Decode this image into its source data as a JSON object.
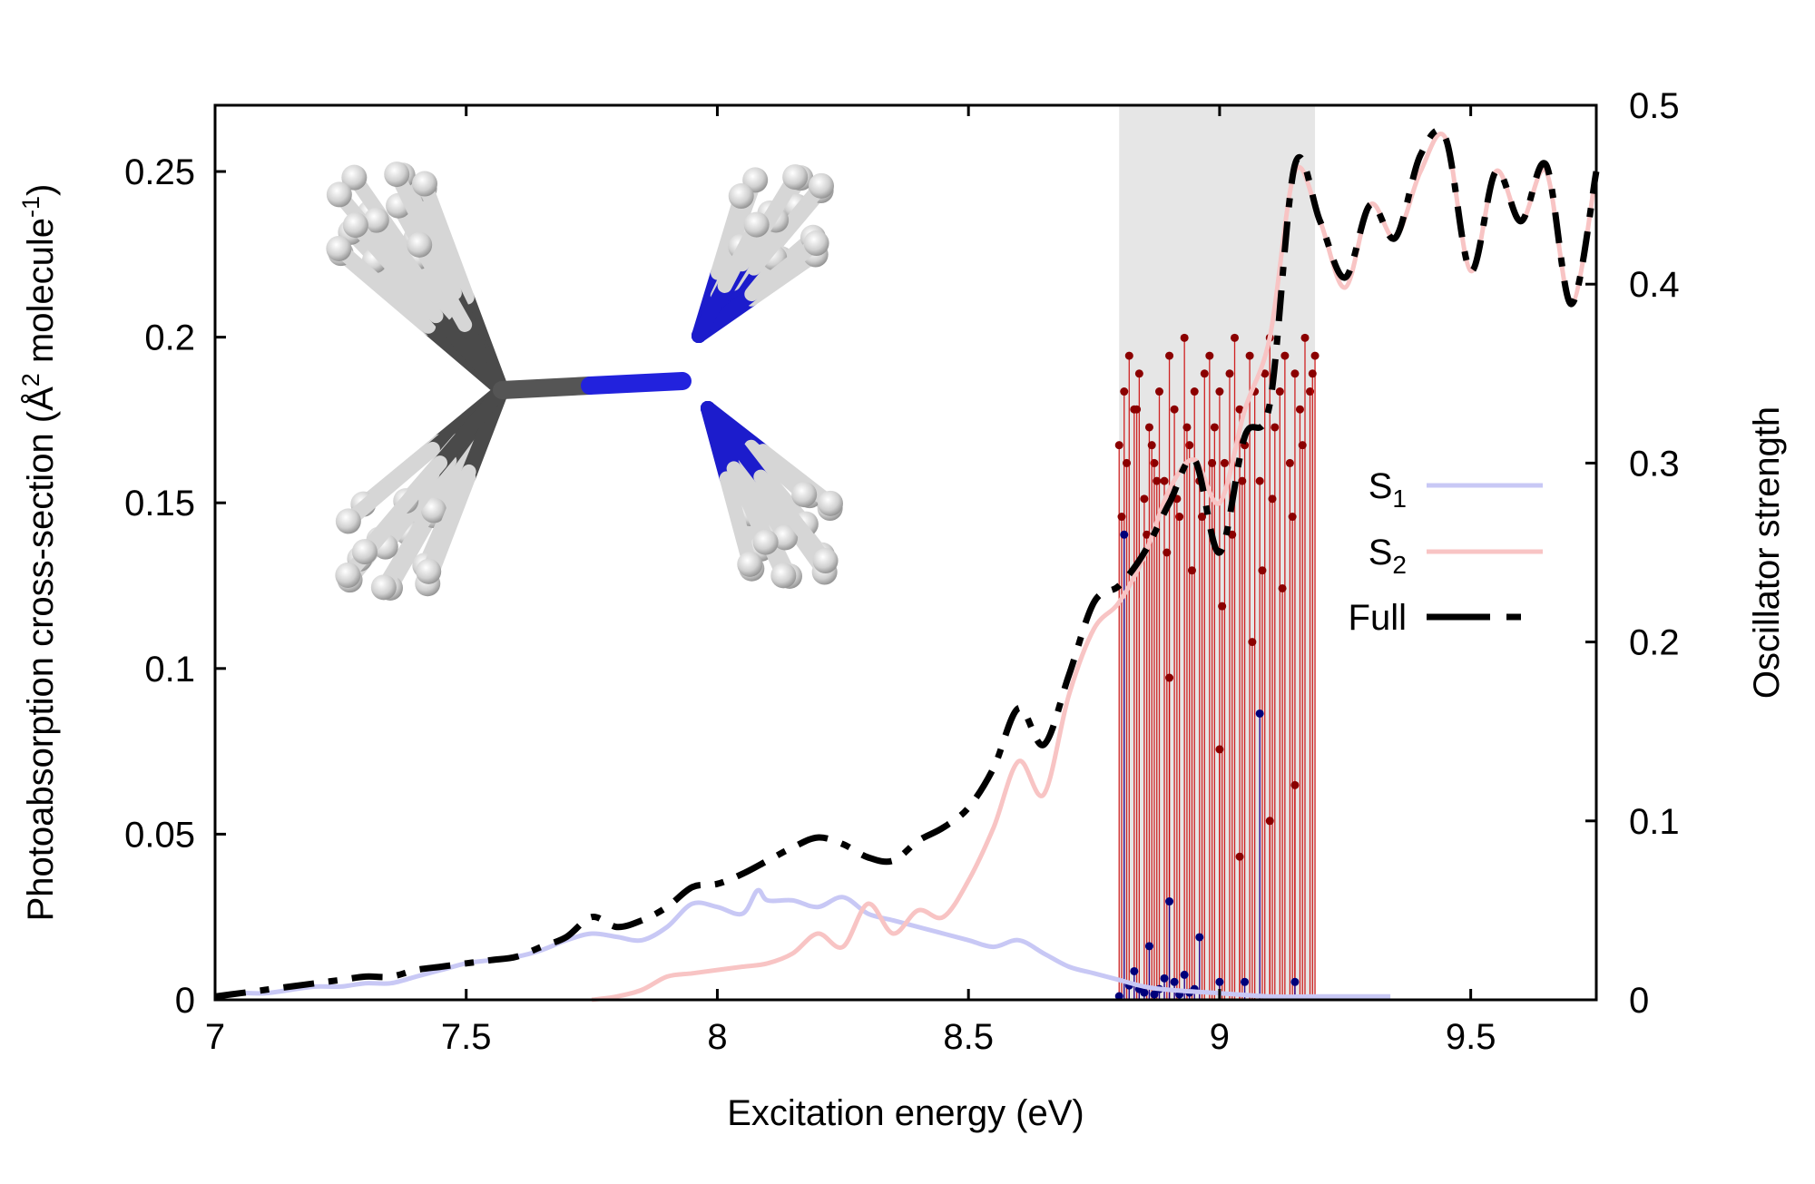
{
  "chart_data": {
    "type": "line",
    "xlabel": "Excitation energy (eV)",
    "ylabel_left": {
      "base": "Photoabsorption cross-section (Å",
      "sup": "2",
      "mid": " molecule",
      "sup2": "-1",
      "end": ")"
    },
    "ylabel_right": "Oscillator strength",
    "xlim": [
      7,
      9.75
    ],
    "ylim_left": [
      0,
      0.27
    ],
    "ylim_right": [
      0,
      0.5
    ],
    "x_ticks": [
      7,
      7.5,
      8,
      8.5,
      9,
      9.5
    ],
    "x_tick_labels": [
      "7",
      "7.5",
      "8",
      "8.5",
      "9",
      "9.5"
    ],
    "y_left_ticks": [
      0,
      0.05,
      0.1,
      0.15,
      0.2,
      0.25
    ],
    "y_left_tick_labels": [
      "0",
      "0.05",
      "0.1",
      "0.15",
      "0.2",
      "0.25"
    ],
    "y_right_ticks": [
      0,
      0.1,
      0.2,
      0.3,
      0.4,
      0.5
    ],
    "y_right_tick_labels": [
      "0",
      "0.1",
      "0.2",
      "0.3",
      "0.4",
      "0.5"
    ],
    "shaded_region": {
      "x": [
        8.8,
        9.19
      ],
      "color": "#e6e6e6"
    },
    "legend": {
      "placement": "right",
      "entries": [
        {
          "label": "S",
          "sub": "1",
          "color": "#c8c8f5",
          "style": "solid"
        },
        {
          "label": "S",
          "sub": "2",
          "color": "#f8c4c4",
          "style": "solid"
        },
        {
          "label": "Full",
          "color": "#000000",
          "style": "dashed"
        }
      ]
    },
    "series": [
      {
        "key": "S1",
        "color": "#c8c8f5",
        "x": [
          7.0,
          7.05,
          7.1,
          7.15,
          7.2,
          7.25,
          7.3,
          7.35,
          7.4,
          7.45,
          7.5,
          7.55,
          7.6,
          7.65,
          7.7,
          7.75,
          7.8,
          7.85,
          7.9,
          7.95,
          8.0,
          8.05,
          8.08,
          8.1,
          8.15,
          8.2,
          8.25,
          8.3,
          8.35,
          8.4,
          8.45,
          8.5,
          8.55,
          8.6,
          8.65,
          8.7,
          8.75,
          8.8,
          8.85,
          8.9,
          9.0,
          9.1,
          9.2,
          9.34
        ],
        "y": [
          0.001,
          0.002,
          0.002,
          0.003,
          0.004,
          0.004,
          0.005,
          0.005,
          0.007,
          0.009,
          0.011,
          0.012,
          0.013,
          0.015,
          0.018,
          0.02,
          0.019,
          0.018,
          0.022,
          0.029,
          0.028,
          0.026,
          0.033,
          0.03,
          0.03,
          0.028,
          0.031,
          0.026,
          0.024,
          0.022,
          0.02,
          0.018,
          0.016,
          0.018,
          0.014,
          0.01,
          0.008,
          0.006,
          0.004,
          0.003,
          0.002,
          0.001,
          0.001,
          0.001
        ]
      },
      {
        "key": "S2",
        "color": "#f8c4c4",
        "x": [
          7.75,
          7.8,
          7.85,
          7.9,
          7.95,
          8.0,
          8.05,
          8.1,
          8.15,
          8.2,
          8.25,
          8.3,
          8.35,
          8.4,
          8.45,
          8.5,
          8.55,
          8.6,
          8.65,
          8.7,
          8.75,
          8.8,
          8.85,
          8.9,
          8.95,
          9.0,
          9.05,
          9.1,
          9.15,
          9.2,
          9.25,
          9.3,
          9.35,
          9.4,
          9.45,
          9.5,
          9.55,
          9.6,
          9.65,
          9.7,
          9.75
        ],
        "y": [
          0.0,
          0.001,
          0.003,
          0.007,
          0.008,
          0.009,
          0.01,
          0.011,
          0.014,
          0.02,
          0.016,
          0.029,
          0.02,
          0.027,
          0.025,
          0.036,
          0.052,
          0.072,
          0.062,
          0.092,
          0.112,
          0.12,
          0.134,
          0.154,
          0.163,
          0.15,
          0.178,
          0.2,
          0.25,
          0.235,
          0.215,
          0.24,
          0.23,
          0.25,
          0.26,
          0.22,
          0.25,
          0.235,
          0.25,
          0.21,
          0.25
        ]
      },
      {
        "key": "Full",
        "color": "#000000",
        "x": [
          7.0,
          7.05,
          7.1,
          7.15,
          7.2,
          7.25,
          7.3,
          7.35,
          7.4,
          7.45,
          7.5,
          7.55,
          7.6,
          7.65,
          7.7,
          7.75,
          7.8,
          7.85,
          7.9,
          7.95,
          8.0,
          8.05,
          8.1,
          8.15,
          8.2,
          8.25,
          8.3,
          8.35,
          8.4,
          8.45,
          8.5,
          8.55,
          8.6,
          8.65,
          8.7,
          8.75,
          8.8,
          8.85,
          8.9,
          8.95,
          9.0,
          9.05,
          9.1,
          9.15,
          9.2,
          9.25,
          9.3,
          9.35,
          9.4,
          9.45,
          9.5,
          9.55,
          9.6,
          9.65,
          9.7,
          9.75
        ],
        "y": [
          0.001,
          0.002,
          0.003,
          0.004,
          0.005,
          0.006,
          0.007,
          0.007,
          0.009,
          0.01,
          0.011,
          0.012,
          0.013,
          0.016,
          0.019,
          0.025,
          0.022,
          0.024,
          0.028,
          0.034,
          0.035,
          0.038,
          0.042,
          0.046,
          0.049,
          0.047,
          0.043,
          0.042,
          0.048,
          0.052,
          0.058,
          0.07,
          0.088,
          0.077,
          0.098,
          0.12,
          0.125,
          0.135,
          0.15,
          0.163,
          0.135,
          0.17,
          0.18,
          0.252,
          0.235,
          0.218,
          0.24,
          0.23,
          0.255,
          0.26,
          0.22,
          0.25,
          0.235,
          0.252,
          0.21,
          0.25
        ]
      }
    ],
    "sticks": {
      "axis": "right",
      "groups": [
        {
          "key": "S2-sticks",
          "color": "#cc0000",
          "marker_color": "#8b0000",
          "note": "many oscillator strengths between 8.80 and 9.19 eV",
          "x": [
            8.8,
            8.81,
            8.82,
            8.83,
            8.84,
            8.85,
            8.86,
            8.87,
            8.88,
            8.89,
            8.9,
            8.91,
            8.92,
            8.93,
            8.94,
            8.95,
            8.96,
            8.97,
            8.98,
            8.99,
            9.0,
            9.01,
            9.02,
            9.03,
            9.04,
            9.05,
            9.06,
            9.07,
            9.08,
            9.09,
            9.1,
            9.11,
            9.12,
            9.13,
            9.14,
            9.15,
            9.16,
            9.17,
            9.18,
            9.19,
            8.805,
            8.815,
            8.835,
            8.855,
            8.865,
            8.875,
            8.895,
            8.915,
            8.935,
            8.945,
            8.965,
            8.985,
            9.005,
            9.025,
            9.045,
            9.065,
            9.085,
            9.105,
            9.125,
            9.145,
            9.165,
            9.185,
            9.0,
            9.04,
            9.1,
            8.9,
            9.15
          ],
          "y": [
            0.31,
            0.34,
            0.36,
            0.33,
            0.35,
            0.28,
            0.32,
            0.3,
            0.34,
            0.29,
            0.36,
            0.33,
            0.27,
            0.37,
            0.31,
            0.34,
            0.29,
            0.35,
            0.36,
            0.32,
            0.34,
            0.3,
            0.35,
            0.37,
            0.33,
            0.31,
            0.36,
            0.34,
            0.29,
            0.35,
            0.37,
            0.32,
            0.34,
            0.36,
            0.3,
            0.35,
            0.33,
            0.37,
            0.34,
            0.36,
            0.27,
            0.3,
            0.33,
            0.26,
            0.31,
            0.29,
            0.25,
            0.28,
            0.32,
            0.24,
            0.27,
            0.3,
            0.22,
            0.26,
            0.29,
            0.2,
            0.24,
            0.28,
            0.23,
            0.27,
            0.31,
            0.35,
            0.14,
            0.08,
            0.1,
            0.18,
            0.12
          ]
        },
        {
          "key": "S1-sticks",
          "color": "#0000aa",
          "marker_color": "#00007a",
          "x": [
            8.8,
            8.81,
            8.82,
            8.83,
            8.84,
            8.85,
            8.86,
            8.87,
            8.88,
            8.89,
            8.9,
            8.91,
            8.92,
            8.93,
            8.94,
            8.95,
            8.96,
            9.0,
            9.05,
            9.08,
            9.15
          ],
          "y": [
            0.002,
            0.26,
            0.008,
            0.016,
            0.006,
            0.004,
            0.03,
            0.003,
            0.006,
            0.012,
            0.055,
            0.01,
            0.003,
            0.014,
            0.004,
            0.006,
            0.035,
            0.01,
            0.01,
            0.16,
            0.01
          ]
        }
      ]
    },
    "inset": {
      "description": "molecular structure overlay",
      "colors": {
        "carbon": "#505050",
        "nitrogen": "#1c1ccc",
        "hydrogen": "#e8e8e8"
      }
    }
  }
}
